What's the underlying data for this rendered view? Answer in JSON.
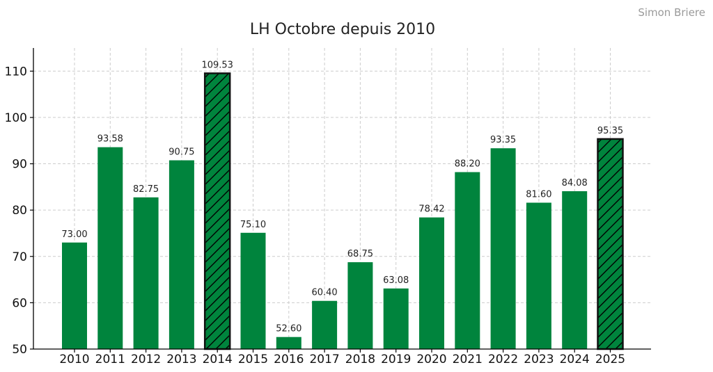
{
  "watermark": "Simon Briere",
  "colors": {
    "bar": "#00843D",
    "highlight_edge": "#111111",
    "hatch": "#000000",
    "grid": "#cccccc"
  },
  "chart_data": {
    "type": "bar",
    "title": "LH Octobre depuis 2010",
    "xlabel": "",
    "ylabel": "",
    "categories": [
      "2010",
      "2011",
      "2012",
      "2013",
      "2014",
      "2015",
      "2016",
      "2017",
      "2018",
      "2019",
      "2020",
      "2021",
      "2022",
      "2023",
      "2024",
      "2025"
    ],
    "values": [
      73.0,
      93.58,
      82.75,
      90.75,
      109.53,
      75.1,
      52.6,
      60.4,
      68.75,
      63.08,
      78.42,
      88.2,
      93.35,
      81.6,
      84.08,
      95.35
    ],
    "value_labels": [
      "73.00",
      "93.58",
      "82.75",
      "90.75",
      "109.53",
      "75.10",
      "52.60",
      "60.40",
      "68.75",
      "63.08",
      "78.42",
      "88.20",
      "93.35",
      "81.60",
      "84.08",
      "95.35"
    ],
    "highlighted": [
      "2014",
      "2025"
    ],
    "ylim": [
      50,
      115
    ],
    "yticks": [
      50,
      60,
      70,
      80,
      90,
      100,
      110
    ],
    "ytick_labels": [
      "50",
      "60",
      "70",
      "80",
      "90",
      "100",
      "110"
    ],
    "grid": true,
    "legend": "none"
  }
}
